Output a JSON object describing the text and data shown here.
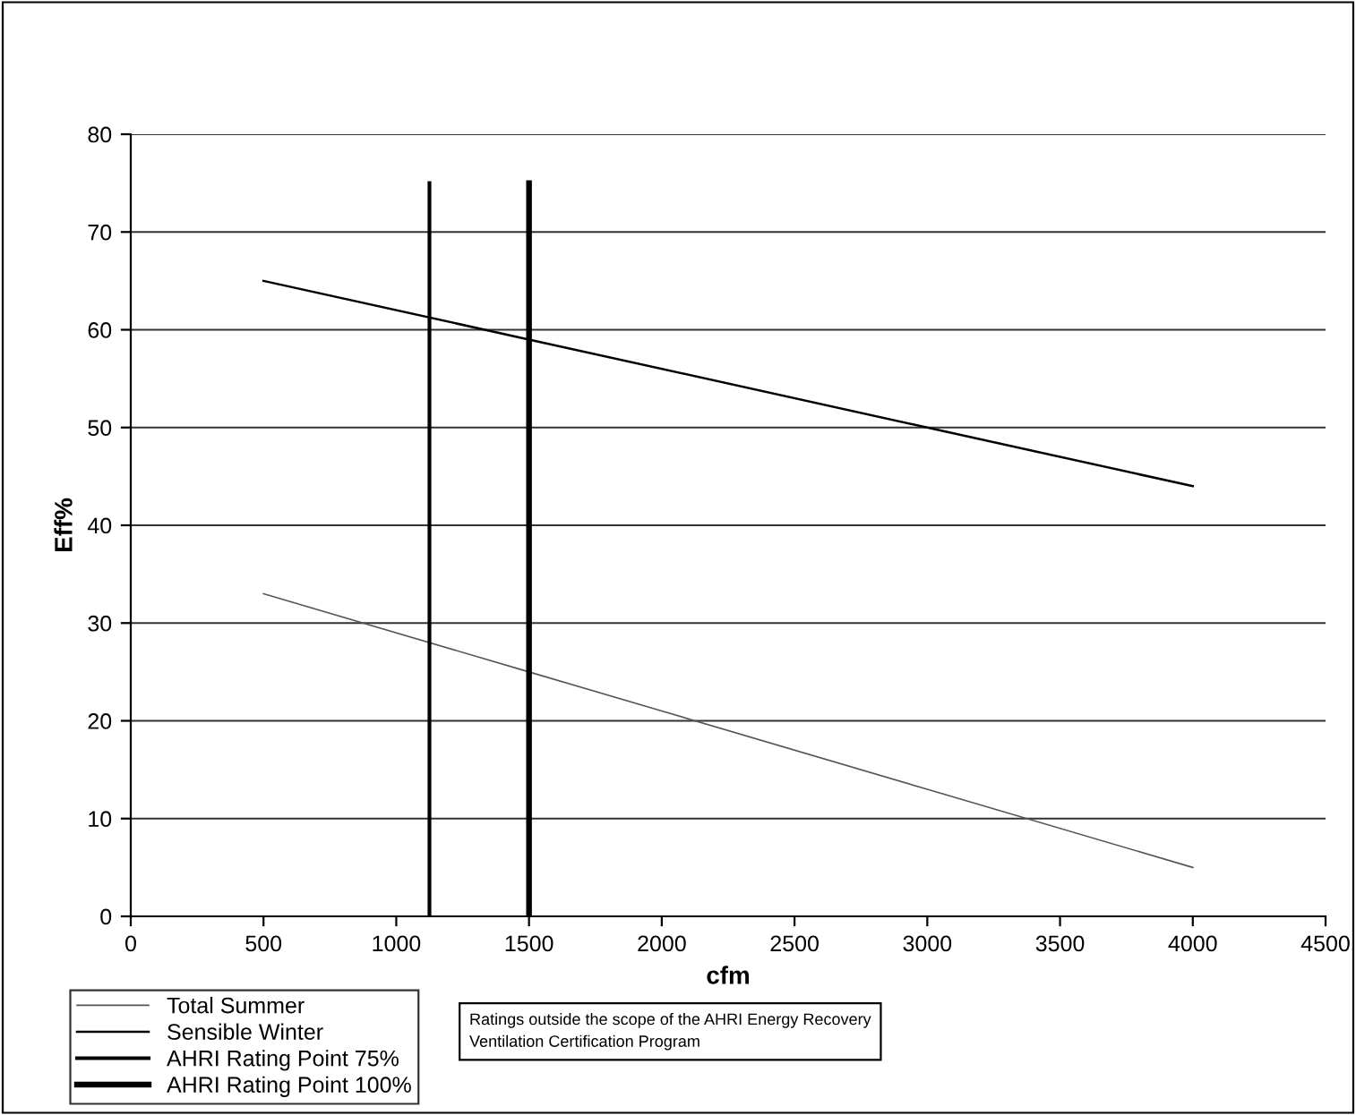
{
  "chart_data": {
    "type": "line",
    "xlabel": "cfm",
    "ylabel": "Eff%",
    "xlim": [
      0,
      4500
    ],
    "xticks": [
      0,
      500,
      1000,
      1500,
      2000,
      2500,
      3000,
      3500,
      4000,
      4500
    ],
    "ylim": [
      0,
      80
    ],
    "yticks": [
      0,
      10,
      20,
      30,
      40,
      50,
      60,
      70,
      80
    ],
    "grid": "y",
    "legend": "bottom left",
    "marker": "none",
    "series": [
      {
        "name": "Total Summer",
        "color": "#555555",
        "x": [
          500,
          1500,
          2000,
          3000,
          4000
        ],
        "values": [
          33,
          25,
          21,
          13,
          5
        ]
      },
      {
        "name": "Sensible Winter",
        "color": "#000000",
        "x": [
          500,
          1500,
          3000,
          4000
        ],
        "values": [
          65,
          59,
          50,
          44
        ]
      },
      {
        "name": "AHRI Rating Point 75%",
        "color": "#000000",
        "x": [
          1125,
          1125
        ],
        "values": [
          0,
          75
        ]
      },
      {
        "name": "AHRI Rating Point 100%",
        "color": "#000000",
        "x": [
          1500,
          1500
        ],
        "values": [
          0,
          75
        ]
      }
    ],
    "annotations": [
      "Ratings outside the scope of the AHRI Energy Recovery Ventilation Certification Program"
    ]
  }
}
